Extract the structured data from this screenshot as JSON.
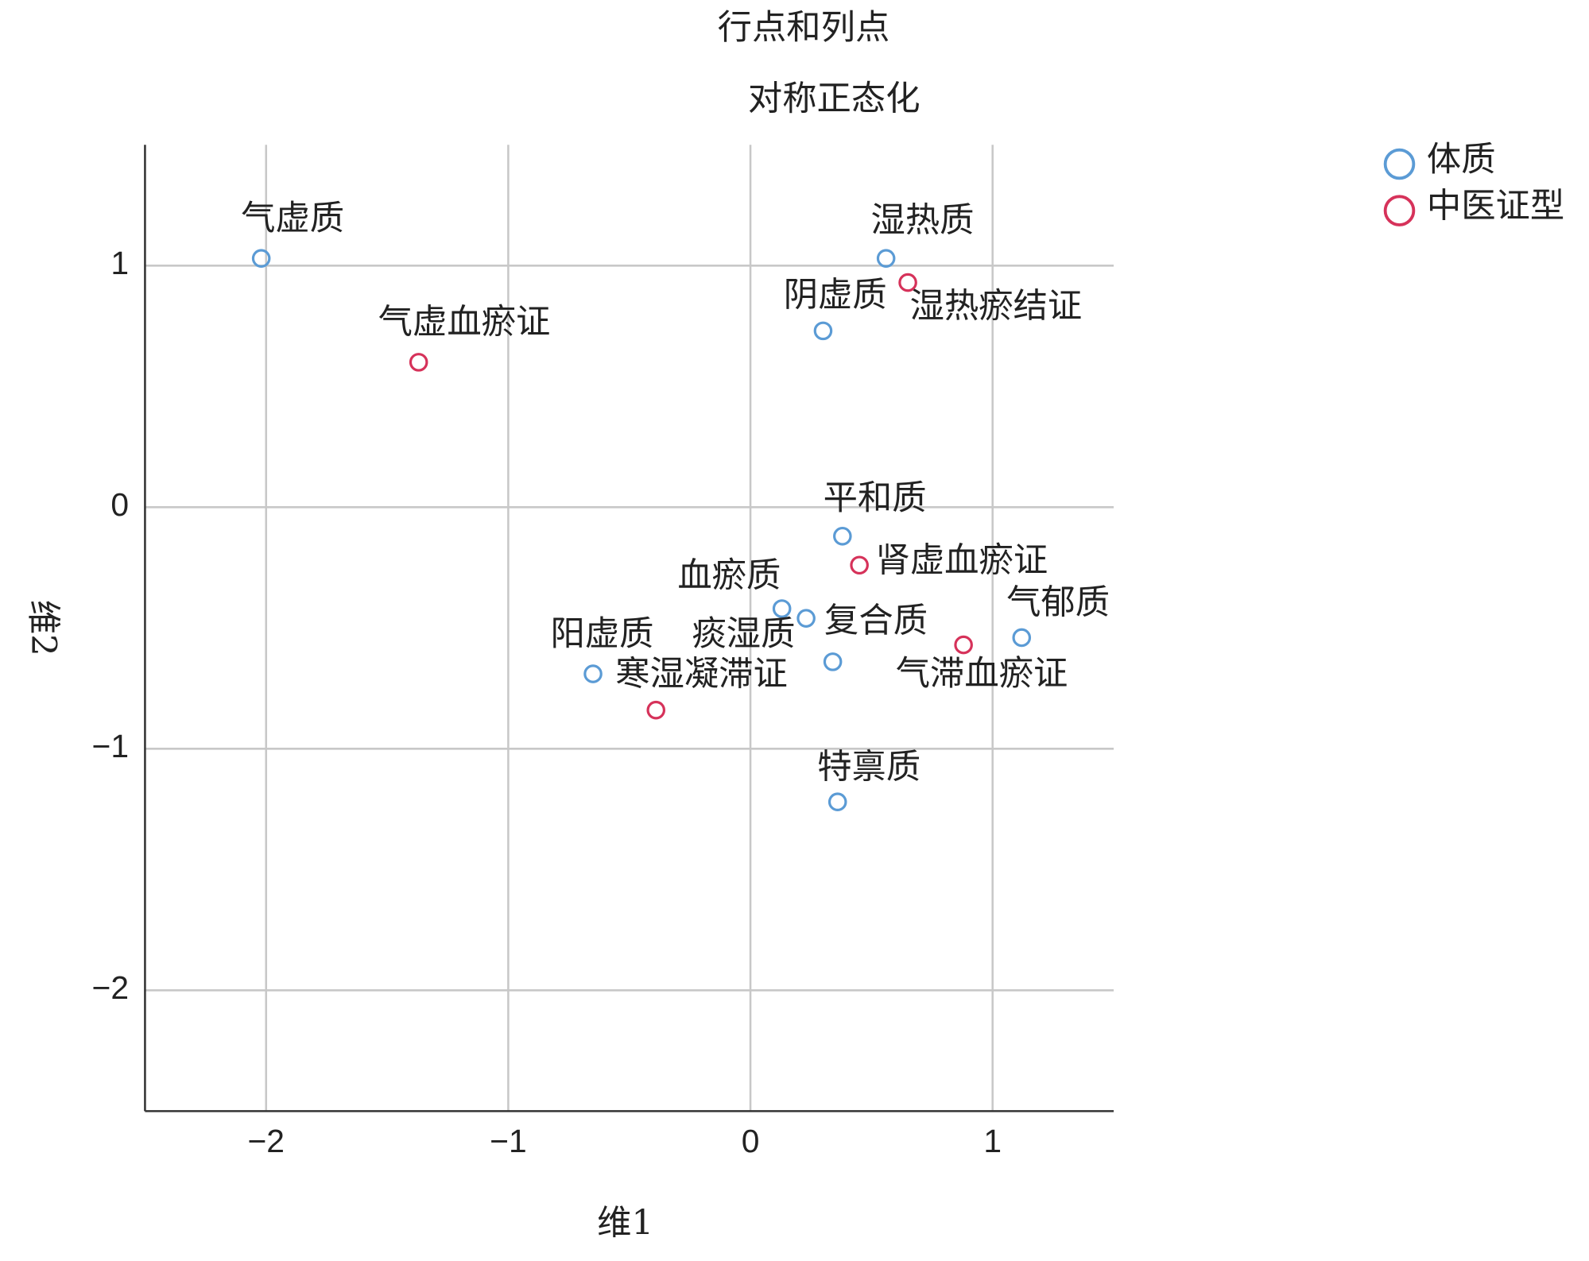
{
  "chart_data": {
    "type": "scatter",
    "title": "行点和列点",
    "subtitle": "对称正态化",
    "x_label": "维1",
    "y_label": "维2",
    "xlim": [
      -2.5,
      1.5
    ],
    "ylim": [
      -2.5,
      1.5
    ],
    "xticks": [
      {
        "value": -2,
        "label": "−2"
      },
      {
        "value": -1,
        "label": "−1"
      },
      0,
      1
    ],
    "yticks": [
      {
        "value": -2,
        "label": "−2"
      },
      {
        "value": -1,
        "label": "−1"
      },
      0,
      1
    ],
    "grid": true,
    "legend": "upper right",
    "series": [
      {
        "name": "体质",
        "color": "#5b9bd5",
        "labels": [
          "气虚质",
          "湿热质",
          "阴虚质",
          "平和质",
          "血瘀质",
          "复合质",
          "痰湿质",
          "气郁质",
          "阳虚质",
          "特禀质"
        ],
        "x": [
          -2.02,
          0.56,
          0.3,
          0.38,
          0.13,
          0.23,
          0.34,
          1.12,
          -0.65,
          0.36
        ],
        "values": [
          1.03,
          1.03,
          0.73,
          -0.12,
          -0.42,
          -0.46,
          -0.64,
          -0.54,
          -0.69,
          -1.22
        ]
      },
      {
        "name": "中医证型",
        "color": "#d6325a",
        "labels": [
          "气虚血瘀证",
          "湿热瘀结证",
          "肾虚血瘀证",
          "气滞血瘀证",
          "寒湿凝滞证"
        ],
        "x": [
          -1.37,
          0.65,
          0.45,
          0.88,
          -0.39
        ],
        "values": [
          0.6,
          0.93,
          -0.24,
          -0.57,
          -0.84
        ]
      }
    ]
  }
}
